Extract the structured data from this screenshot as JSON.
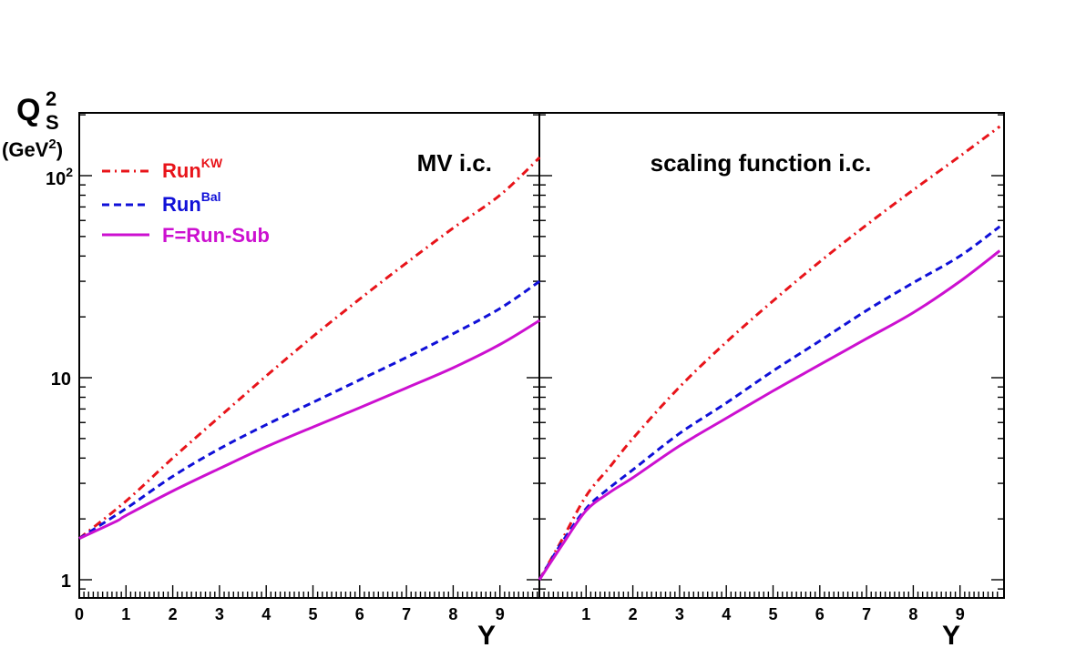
{
  "chart_data": [
    {
      "type": "line",
      "panel_label": "MV i.c.",
      "x_ticks": [
        "0",
        "1",
        "2",
        "3",
        "4",
        "5",
        "6",
        "7",
        "8",
        "9"
      ],
      "xlabel": "Y",
      "xlim": [
        0,
        9.85
      ],
      "ylim": [
        0.85,
        220
      ],
      "y_scale": "log",
      "legend_position": "top-left",
      "series": [
        {
          "name": "Run^KW",
          "color": "#e8141a",
          "style": "dash-dot",
          "x": [
            0,
            1,
            2,
            3,
            4,
            5,
            6,
            7,
            8,
            9,
            9.85
          ],
          "y": [
            1.6,
            2.45,
            4.0,
            6.4,
            10.2,
            16.0,
            24.5,
            37.0,
            55.0,
            80.0,
            123.0
          ]
        },
        {
          "name": "Run^Bal",
          "color": "#1010d8",
          "style": "dashed",
          "x": [
            0,
            1,
            2,
            3,
            4,
            5,
            6,
            7,
            8,
            9,
            9.85
          ],
          "y": [
            1.6,
            2.25,
            3.25,
            4.45,
            5.85,
            7.55,
            9.75,
            12.6,
            16.5,
            22.0,
            30.0
          ]
        },
        {
          "name": "F=Run-Sub",
          "color": "#cc10d0",
          "style": "solid",
          "x": [
            0,
            0.8,
            1,
            2,
            3,
            4,
            5,
            6,
            7,
            8,
            9,
            9.85
          ],
          "y": [
            1.6,
            1.95,
            2.08,
            2.75,
            3.55,
            4.55,
            5.7,
            7.1,
            8.9,
            11.2,
            14.6,
            19.2
          ]
        }
      ]
    },
    {
      "type": "line",
      "panel_label": "scaling function i.c.",
      "x_ticks": [
        "1",
        "2",
        "3",
        "4",
        "5",
        "6",
        "7",
        "8",
        "9"
      ],
      "xlabel": "Y",
      "xlim": [
        0,
        9.85
      ],
      "ylim": [
        0.85,
        220
      ],
      "y_scale": "log",
      "series": [
        {
          "name": "Run^KW",
          "color": "#e8141a",
          "style": "dash-dot",
          "x": [
            0,
            0.5,
            1,
            1.5,
            2,
            3,
            4,
            5,
            6,
            7,
            8,
            9,
            9.85
          ],
          "y": [
            1.0,
            1.6,
            2.6,
            3.6,
            5.0,
            9.0,
            15.0,
            24.0,
            37.5,
            57.0,
            85.0,
            125.0,
            175.0
          ]
        },
        {
          "name": "Run^Bal",
          "color": "#1010d8",
          "style": "dashed",
          "x": [
            0,
            0.5,
            1,
            1.5,
            2,
            3,
            4,
            5,
            6,
            7,
            8,
            9,
            9.85
          ],
          "y": [
            1.0,
            1.55,
            2.25,
            2.85,
            3.5,
            5.3,
            7.5,
            10.8,
            15.2,
            21.5,
            29.5,
            40.0,
            56.0
          ]
        },
        {
          "name": "F=Run-Sub",
          "color": "#cc10d0",
          "style": "solid",
          "x": [
            0,
            0.5,
            1,
            1.5,
            2,
            3,
            4,
            5,
            6,
            7,
            8,
            9,
            9.85
          ],
          "y": [
            1.0,
            1.5,
            2.2,
            2.7,
            3.2,
            4.6,
            6.3,
            8.6,
            11.6,
            15.6,
            21.0,
            30.0,
            42.5
          ]
        }
      ]
    }
  ],
  "y_axis": {
    "label_main": "Q",
    "label_sup": "2",
    "label_sub": "S",
    "unit_prefix": "(GeV",
    "unit_sup": "2",
    "unit_suffix": ")",
    "tick_1": "1",
    "tick_10": "10",
    "tick_100_base": "10",
    "tick_100_exp": "2"
  },
  "legend": [
    {
      "base": "Run",
      "sup": "KW",
      "color": "#e8141a",
      "style": "dash-dot"
    },
    {
      "base": "Run",
      "sup": "Bal",
      "color": "#1010d8",
      "style": "dashed"
    },
    {
      "base": "F=Run-Sub",
      "sup": "",
      "color": "#cc10d0",
      "style": "solid"
    }
  ]
}
